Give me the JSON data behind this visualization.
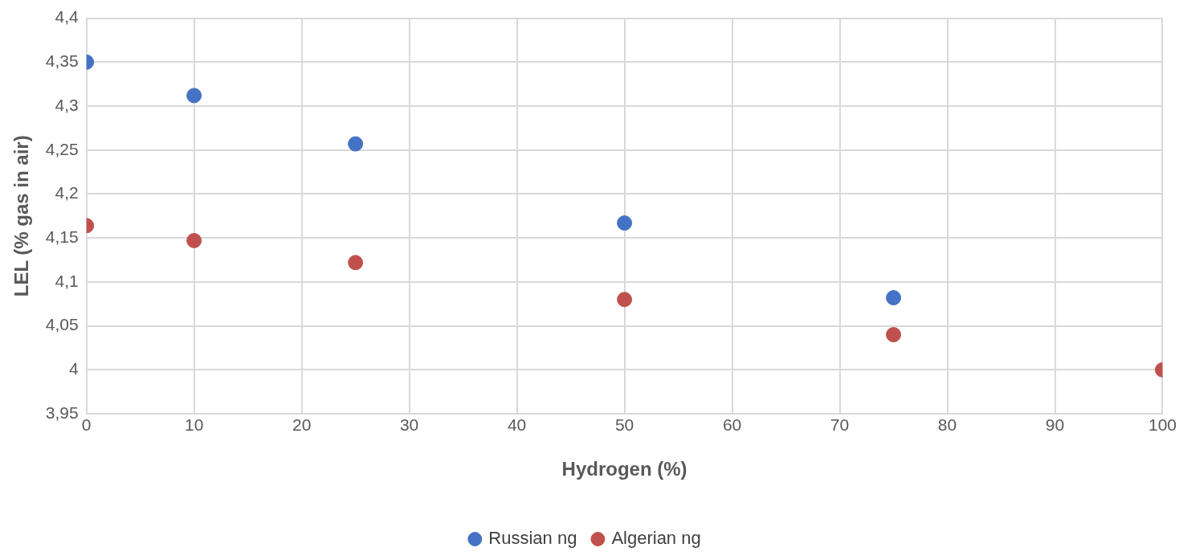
{
  "chart_data": {
    "type": "scatter",
    "xlabel": "Hydrogen (%)",
    "ylabel": "LEL (% gas in air)",
    "xlim": [
      0,
      100
    ],
    "xticks": [
      0,
      10,
      20,
      30,
      40,
      50,
      60,
      70,
      80,
      90,
      100
    ],
    "ylim": [
      3.95,
      4.4
    ],
    "yticks": [
      {
        "value": 3.95,
        "label": "3,95"
      },
      {
        "value": 4,
        "label": "4"
      },
      {
        "value": 4.05,
        "label": "4,05"
      },
      {
        "value": 4.1,
        "label": "4,1"
      },
      {
        "value": 4.15,
        "label": "4,15"
      },
      {
        "value": 4.2,
        "label": "4,2"
      },
      {
        "value": 4.25,
        "label": "4,25"
      },
      {
        "value": 4.3,
        "label": "4,3"
      },
      {
        "value": 4.35,
        "label": "4,35"
      },
      {
        "value": 4.4,
        "label": "4,4"
      }
    ],
    "series": [
      {
        "name": "Russian ng",
        "color": "#4472c4",
        "x": [
          0,
          10,
          25,
          50,
          75
        ],
        "values": [
          4.35,
          4.312,
          4.257,
          4.167,
          4.082
        ]
      },
      {
        "name": "Algerian ng",
        "color": "#c0504d",
        "x": [
          0,
          10,
          25,
          50,
          75,
          100
        ],
        "values": [
          4.164,
          4.147,
          4.122,
          4.08,
          4.04,
          4.0
        ]
      }
    ],
    "grid": true,
    "legend": "bottom",
    "marker": "circle"
  }
}
